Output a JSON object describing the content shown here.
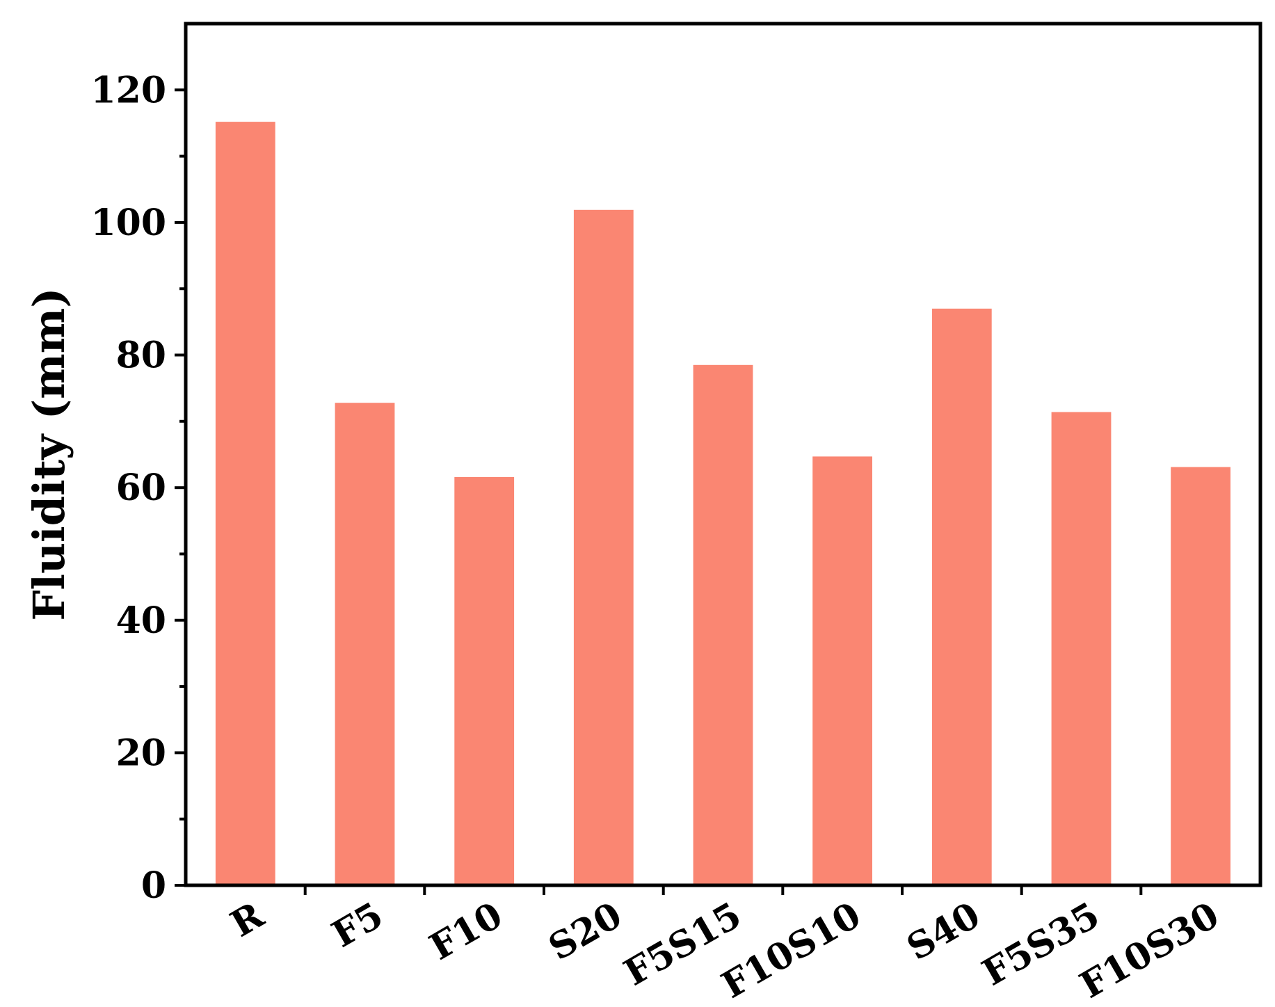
{
  "chart_data": {
    "type": "bar",
    "title": "",
    "xlabel": "",
    "ylabel": "Fluidity (mm)",
    "categories": [
      "R",
      "F5",
      "F10",
      "S20",
      "F5S15",
      "F10S10",
      "S40",
      "F5S35",
      "F10S30"
    ],
    "values": [
      115.2,
      72.8,
      61.6,
      101.9,
      78.5,
      64.7,
      87.0,
      71.4,
      63.1
    ],
    "ylim": [
      0,
      130
    ],
    "yticks": [
      0,
      20,
      40,
      60,
      80,
      100,
      120
    ],
    "ytick_labels": [
      "0",
      "20",
      "40",
      "60",
      "80",
      "100",
      "120"
    ],
    "grid": false,
    "legend": "none",
    "bar_color": "#FA8672"
  }
}
